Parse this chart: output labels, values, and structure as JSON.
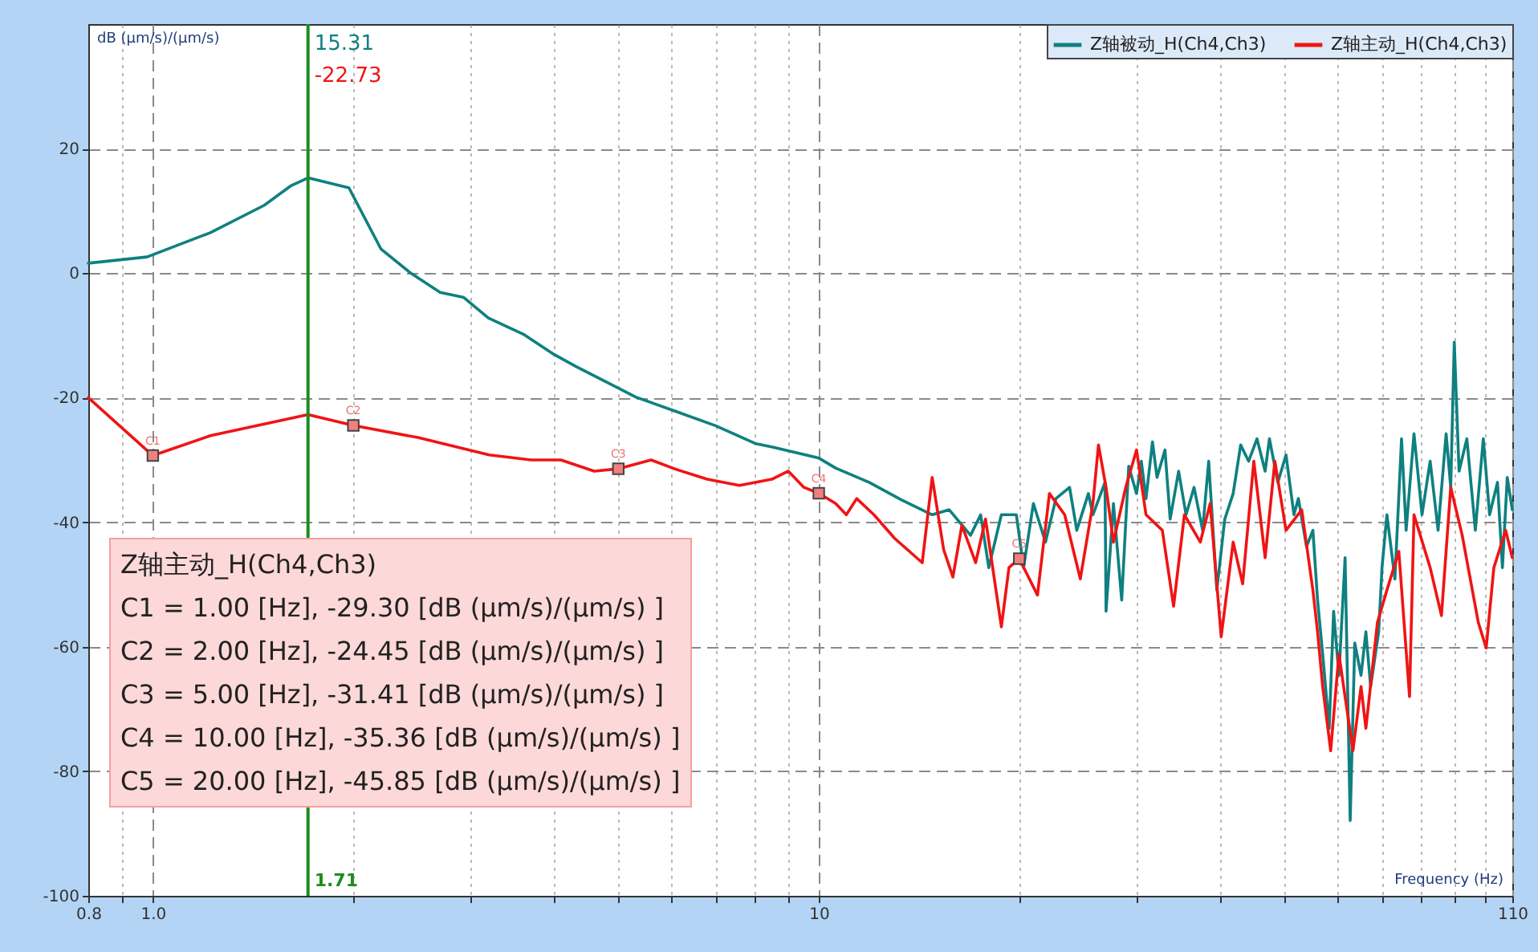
{
  "chart_data": {
    "type": "line",
    "xlabel": "Frequency (Hz)",
    "ylabel": "dB (µm/s)/(µm/s)",
    "log": "x",
    "grid": true,
    "legend": "top right",
    "xlim": [
      0.8,
      110
    ],
    "ylim": [
      -100,
      40
    ],
    "xticks": [
      0.8,
      {
        "value": 0.9,
        "label": null
      },
      {
        "value": 1,
        "label": "1.0"
      },
      {
        "value": 2,
        "label": null
      },
      {
        "value": 3,
        "label": null
      },
      {
        "value": 4,
        "label": null
      },
      {
        "value": 5,
        "label": null
      },
      {
        "value": 6,
        "label": null
      },
      {
        "value": 7,
        "label": null
      },
      {
        "value": 8,
        "label": null
      },
      {
        "value": 9,
        "label": null
      },
      10,
      {
        "value": 20,
        "label": null
      },
      {
        "value": 30,
        "label": null
      },
      {
        "value": 40,
        "label": null
      },
      {
        "value": 50,
        "label": null
      },
      {
        "value": 60,
        "label": null
      },
      {
        "value": 70,
        "label": null
      },
      {
        "value": 80,
        "label": null
      },
      {
        "value": 90,
        "label": null
      },
      {
        "value": 100,
        "label": null
      },
      110
    ],
    "yticks": [
      -100,
      -80,
      -60,
      -40,
      -20,
      0,
      20
    ],
    "series": [
      {
        "name": "Z轴被动_H(Ch4,Ch3)",
        "color": "#0f8080",
        "x": [
          0.8,
          0.98,
          1.22,
          1.47,
          1.61,
          1.71,
          1.97,
          2.2,
          2.44,
          2.7,
          2.93,
          3.19,
          3.6,
          3.98,
          4.32,
          4.7,
          5.31,
          6.1,
          7.0,
          8.05,
          8.5,
          10,
          10.6,
          11.9,
          13.3,
          14.8,
          15.7,
          16.9,
          17.5,
          18.0,
          18.8,
          19.8,
          20.3,
          21.0,
          21.9,
          22.7,
          23.8,
          24.4,
          25.4,
          25.8,
          26.9,
          27.0,
          27.7,
          28.5,
          29.2,
          30.0,
          30.5,
          31.0,
          31.7,
          32.2,
          33.1,
          33.7,
          34.7,
          35.6,
          36.6,
          37.7,
          38.5,
          39.6,
          40.7,
          41.9,
          43.0,
          44.2,
          45.5,
          46.8,
          47.5,
          48.9,
          50.3,
          51.7,
          52.5,
          54.0,
          55.2,
          56.1,
          57.1,
          58.4,
          59.3,
          60.4,
          61.7,
          62.8,
          63.8,
          65.2,
          66.3,
          67.4,
          69.3,
          70.1,
          71.3,
          73.3,
          75.0,
          76.2,
          78.3,
          80.5,
          82.8,
          85.1,
          87.5,
          88.9,
          90.0,
          91.5,
          94.0,
          96.8,
          99.5,
          101.7,
          104.5,
          106.3,
          108.1,
          110
        ],
        "values": [
          1.6,
          2.6,
          6.5,
          10.9,
          14.0,
          15.31,
          13.7,
          3.9,
          0,
          -3.1,
          -3.9,
          -7.2,
          -9.8,
          -12.9,
          -15,
          -17,
          -19.9,
          -22.2,
          -24.5,
          -27.4,
          -27.9,
          -29.7,
          -31.3,
          -33.6,
          -36.4,
          -38.8,
          -38.0,
          -42.1,
          -38.8,
          -47.3,
          -38.8,
          -38.8,
          -47.3,
          -37.0,
          -43.2,
          -36.2,
          -34.4,
          -41.3,
          -35.4,
          -38.8,
          -33.6,
          -54.3,
          -37.0,
          -52.5,
          -31.0,
          -35.4,
          -30.2,
          -36.2,
          -27.1,
          -32.8,
          -28.4,
          -39.5,
          -31.8,
          -38.8,
          -34.4,
          -41.3,
          -30.2,
          -50.9,
          -39.5,
          -35.4,
          -27.6,
          -30.2,
          -26.6,
          -31.8,
          -26.6,
          -33.6,
          -29.2,
          -38.8,
          -36.2,
          -43.9,
          -41.3,
          -52.5,
          -61.2,
          -73.1,
          -54.3,
          -64.6,
          -45.7,
          -87.9,
          -59.4,
          -64.6,
          -57.6,
          -66.4,
          -57.6,
          -47.3,
          -38.8,
          -49.1,
          -26.6,
          -41.3,
          -25.8,
          -38.8,
          -30.2,
          -41.3,
          -25.8,
          -34.4,
          -11.1,
          -31.8,
          -26.6,
          -41.3,
          -26.6,
          -38.8,
          -33.6,
          -47.3,
          -32.8,
          -38.0
        ]
      },
      {
        "name": "Z轴主动_H(Ch4,Ch3)",
        "color": "#f01414",
        "x": [
          0.8,
          1,
          1.22,
          1.71,
          2,
          2.5,
          3.2,
          3.7,
          4.1,
          4.6,
          5,
          5.6,
          6.1,
          6.8,
          7.6,
          8.5,
          9.0,
          9.5,
          10,
          10.6,
          11.0,
          11.4,
          12.1,
          13.0,
          14.3,
          14.8,
          15.4,
          15.9,
          16.4,
          17.2,
          17.8,
          18.8,
          19.3,
          20,
          21.3,
          22.2,
          23.4,
          24.7,
          25.8,
          26.3,
          27.0,
          27.7,
          28.9,
          30.0,
          31.0,
          32.8,
          34.1,
          35.4,
          37.4,
          38.7,
          40.2,
          41.9,
          43.3,
          45.0,
          46.8,
          48.4,
          50.3,
          53.1,
          55.2,
          56.1,
          57.1,
          58.7,
          60.4,
          63.4,
          65.2,
          66.3,
          69.0,
          71.3,
          74.3,
          77.1,
          78.3,
          82.8,
          86.1,
          88.9,
          92.5,
          97.8,
          100.5,
          103.2,
          107.5,
          110
        ],
        "values": [
          -20,
          -29.3,
          -26.1,
          -22.73,
          -24.45,
          -26.4,
          -29.2,
          -30.0,
          -30.0,
          -31.8,
          -31.41,
          -30.0,
          -31.5,
          -33.1,
          -34.1,
          -33.1,
          -31.8,
          -34.4,
          -35.36,
          -37.0,
          -38.8,
          -36.2,
          -38.8,
          -42.6,
          -46.5,
          -32.8,
          -44.4,
          -48.8,
          -40.5,
          -46.5,
          -39.5,
          -56.8,
          -47.3,
          -45.85,
          -51.7,
          -35.4,
          -38.8,
          -49.1,
          -37.0,
          -27.6,
          -34.4,
          -43.2,
          -34.4,
          -28.4,
          -38.8,
          -41.3,
          -53.5,
          -38.8,
          -43.2,
          -37.0,
          -58.4,
          -43.2,
          -49.9,
          -30.2,
          -45.7,
          -30.2,
          -41.3,
          -38.0,
          -50.9,
          -57.6,
          -66.4,
          -76.7,
          -61.2,
          -76.7,
          -66.4,
          -73.1,
          -56.1,
          -50.9,
          -44.7,
          -68.0,
          -38.8,
          -47.3,
          -55.0,
          -34.4,
          -42.1,
          -56.1,
          -60.2,
          -47.3,
          -41.3,
          -45.7
        ]
      },
      {
        "type": "scatter",
        "marker": "square",
        "color": "#f08080",
        "x": [
          1,
          2,
          5,
          10,
          20
        ],
        "values": [
          -29.3,
          -24.45,
          -31.41,
          -35.36,
          -45.85
        ]
      }
    ],
    "ref_lines": [
      {
        "axis": "x",
        "value": 1.71,
        "label": "1.71",
        "color": "#1e8c1e"
      }
    ],
    "annotations": [
      "Z轴主动_H(Ch4,Ch3)",
      "C1 = 1.00 [Hz], -29.30 [dB (µm/s)/(µm/s) ]",
      "C2 = 2.00 [Hz], -24.45 [dB (µm/s)/(µm/s) ]",
      "C3 = 5.00 [Hz], -31.41 [dB (µm/s)/(µm/s) ]",
      "C4 = 10.00 [Hz], -35.36 [dB (µm/s)/(µm/s) ]",
      "C5 = 20.00 [Hz], -45.85 [dB (µm/s)/(µm/s) ]",
      {
        "text": "15.31",
        "x": 1.71
      },
      {
        "text": "-22.73",
        "x": 1.71
      },
      {
        "text": "C1",
        "x": 1,
        "y": -29.3
      },
      {
        "text": "C2",
        "x": 2,
        "y": -24.45
      },
      {
        "text": "C3",
        "x": 5,
        "y": -31.41
      },
      {
        "text": "C4",
        "x": 10,
        "y": -35.36
      },
      {
        "text": "C5",
        "x": 20,
        "y": -45.85
      }
    ]
  }
}
